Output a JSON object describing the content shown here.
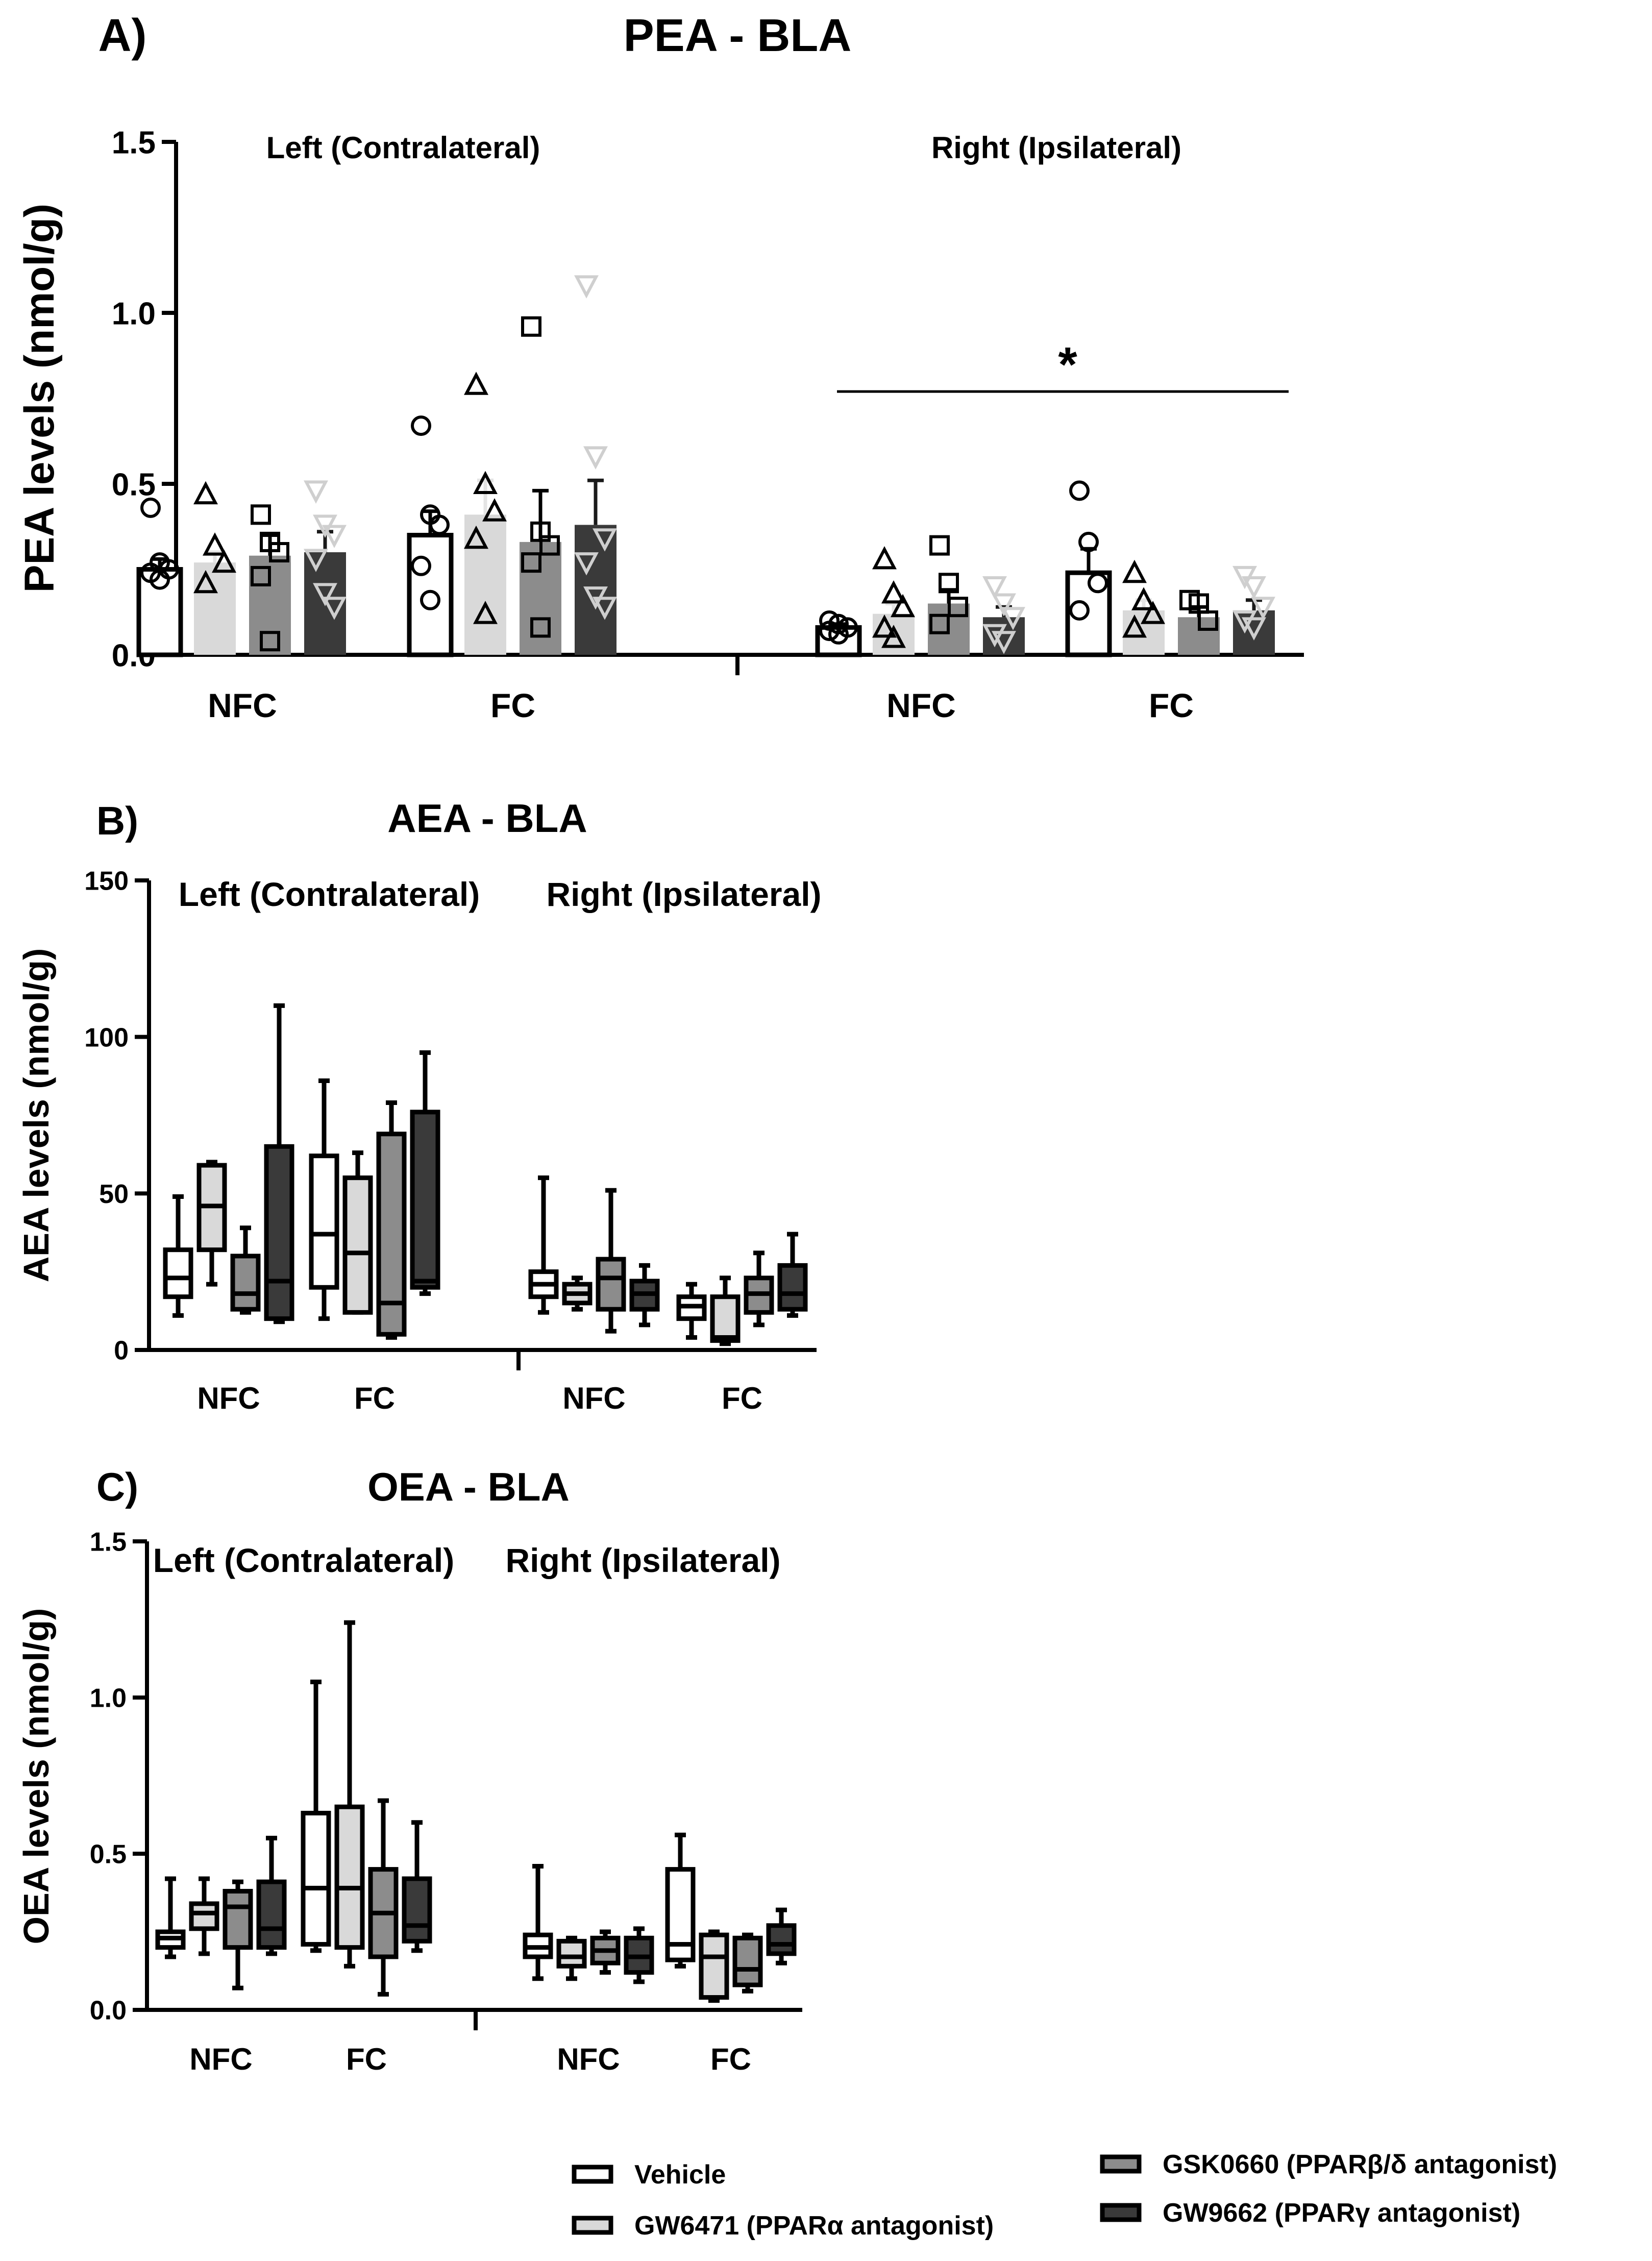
{
  "colors": {
    "vehicle": "#ffffff",
    "gw6471": "#d9d9d9",
    "gsk0660": "#8c8c8c",
    "gw9662": "#3a3a3a",
    "gw9662_marker": "#cfcfcf",
    "axis": "#000000"
  },
  "legend": {
    "items": [
      {
        "label": "Vehicle",
        "color": "#ffffff"
      },
      {
        "label": "GW6471 (PPARα antagonist)",
        "color": "#d9d9d9"
      },
      {
        "label": "GSK0660 (PPARβ/δ antagonist)",
        "color": "#8c8c8c"
      },
      {
        "label": "GW9662 (PPARγ antagonist)",
        "color": "#3a3a3a"
      }
    ]
  },
  "chart_data": [
    {
      "panel": "A)",
      "type": "bar",
      "title": "PEA - BLA",
      "ylabel": "PEA levels (nmol/g)",
      "ylim": [
        0,
        1.5
      ],
      "yticks": [
        "0.0",
        "0.5",
        "1.0",
        "1.5"
      ],
      "ytick_values": [
        0,
        0.5,
        1.0,
        1.5
      ],
      "sides": [
        "Left (Contralateral)",
        "Right (Ipsilateral)"
      ],
      "categories": [
        "NFC",
        "FC",
        "NFC",
        "FC"
      ],
      "series": [
        {
          "name": "Vehicle",
          "marker": "circle",
          "values": [
            0.25,
            0.35,
            0.08,
            0.24
          ],
          "sem": [
            0.03,
            0.07,
            0.01,
            0.07
          ],
          "points": [
            [
              0.43,
              0.27,
              0.25,
              0.24,
              0.22
            ],
            [
              0.67,
              0.41,
              0.38,
              0.26,
              0.16
            ],
            [
              0.1,
              0.09,
              0.08,
              0.07,
              0.06
            ],
            [
              0.48,
              0.33,
              0.21,
              0.13
            ]
          ]
        },
        {
          "name": "GW6471 (PPARα antagonist)",
          "marker": "triangle",
          "values": [
            0.27,
            0.41,
            0.12,
            0.13
          ],
          "sem": [
            0.03,
            0.1,
            0.03,
            0.03
          ],
          "points": [
            [
              0.47,
              0.32,
              0.27,
              0.21
            ],
            [
              0.79,
              0.5,
              0.42,
              0.34,
              0.12
            ],
            [
              0.28,
              0.18,
              0.14,
              0.08,
              0.05
            ],
            [
              0.24,
              0.16,
              0.12,
              0.08
            ]
          ]
        },
        {
          "name": "GSK0660 (PPARβ/δ antagonist)",
          "marker": "square",
          "values": [
            0.29,
            0.33,
            0.15,
            0.11
          ],
          "sem": [
            0.06,
            0.15,
            0.04,
            0.03
          ],
          "points": [
            [
              0.41,
              0.33,
              0.3,
              0.23,
              0.04
            ],
            [
              0.96,
              0.36,
              0.32,
              0.27,
              0.08
            ],
            [
              0.32,
              0.21,
              0.14,
              0.09
            ],
            [
              0.16,
              0.15,
              0.1
            ]
          ]
        },
        {
          "name": "GW9662 (PPARγ antagonist)",
          "marker": "inverted-triangle",
          "values": [
            0.3,
            0.38,
            0.11,
            0.13
          ],
          "sem": [
            0.06,
            0.13,
            0.03,
            0.03
          ],
          "points": [
            [
              0.48,
              0.38,
              0.35,
              0.28,
              0.18,
              0.14
            ],
            [
              1.08,
              0.58,
              0.34,
              0.27,
              0.17,
              0.14
            ],
            [
              0.2,
              0.15,
              0.11,
              0.06,
              0.04
            ],
            [
              0.23,
              0.2,
              0.14,
              0.1,
              0.08
            ]
          ]
        }
      ],
      "annotation": {
        "text": "*",
        "span": "Right (Ipsilateral)",
        "y": 0.77
      }
    },
    {
      "panel": "B)",
      "type": "box",
      "title": "AEA - BLA",
      "ylabel": "AEA levels (nmol/g)",
      "ylim": [
        0,
        150
      ],
      "yticks": [
        "0",
        "50",
        "100",
        "150"
      ],
      "ytick_values": [
        0,
        50,
        100,
        150
      ],
      "sides": [
        "Left (Contralateral)",
        "Right (Ipsilateral)"
      ],
      "categories": [
        "NFC",
        "FC",
        "NFC",
        "FC"
      ],
      "series": [
        {
          "name": "Vehicle",
          "boxes": [
            {
              "min": 11,
              "q1": 17,
              "median": 23,
              "q3": 32,
              "max": 49
            },
            {
              "min": 10,
              "q1": 20,
              "median": 37,
              "q3": 62,
              "max": 86
            },
            {
              "min": 12,
              "q1": 17,
              "median": 21,
              "q3": 25,
              "max": 55
            },
            {
              "min": 4,
              "q1": 10,
              "median": 14,
              "q3": 17,
              "max": 21
            }
          ]
        },
        {
          "name": "GW6471 (PPARα antagonist)",
          "boxes": [
            {
              "min": 21,
              "q1": 32,
              "median": 46,
              "q3": 59,
              "max": 60
            },
            {
              "min": 12,
              "q1": 12,
              "median": 31,
              "q3": 55,
              "max": 63
            },
            {
              "min": 13,
              "q1": 15,
              "median": 18,
              "q3": 21,
              "max": 23
            },
            {
              "min": 2,
              "q1": 3,
              "median": 4,
              "q3": 17,
              "max": 23
            }
          ]
        },
        {
          "name": "GSK0660 (PPARβ/δ antagonist)",
          "boxes": [
            {
              "min": 12,
              "q1": 13,
              "median": 18,
              "q3": 30,
              "max": 39
            },
            {
              "min": 4,
              "q1": 5,
              "median": 15,
              "q3": 69,
              "max": 79
            },
            {
              "min": 6,
              "q1": 13,
              "median": 23,
              "q3": 29,
              "max": 51
            },
            {
              "min": 8,
              "q1": 12,
              "median": 18,
              "q3": 23,
              "max": 31
            }
          ]
        },
        {
          "name": "GW9662 (PPARγ antagonist)",
          "boxes": [
            {
              "min": 9,
              "q1": 10,
              "median": 22,
              "q3": 65,
              "max": 110
            },
            {
              "min": 18,
              "q1": 20,
              "median": 22,
              "q3": 76,
              "max": 95
            },
            {
              "min": 8,
              "q1": 13,
              "median": 18,
              "q3": 22,
              "max": 27
            },
            {
              "min": 11,
              "q1": 13,
              "median": 18,
              "q3": 27,
              "max": 37
            }
          ]
        }
      ]
    },
    {
      "panel": "C)",
      "type": "box",
      "title": "OEA - BLA",
      "ylabel": "OEA levels (nmol/g)",
      "ylim": [
        0,
        1.5
      ],
      "yticks": [
        "0.0",
        "0.5",
        "1.0",
        "1.5"
      ],
      "ytick_values": [
        0,
        0.5,
        1.0,
        1.5
      ],
      "sides": [
        "Left (Contralateral)",
        "Right (Ipsilateral)"
      ],
      "categories": [
        "NFC",
        "FC",
        "NFC",
        "FC"
      ],
      "series": [
        {
          "name": "Vehicle",
          "boxes": [
            {
              "min": 0.17,
              "q1": 0.2,
              "median": 0.23,
              "q3": 0.25,
              "max": 0.42
            },
            {
              "min": 0.19,
              "q1": 0.21,
              "median": 0.39,
              "q3": 0.63,
              "max": 1.05
            },
            {
              "min": 0.1,
              "q1": 0.17,
              "median": 0.2,
              "q3": 0.24,
              "max": 0.46
            },
            {
              "min": 0.14,
              "q1": 0.16,
              "median": 0.21,
              "q3": 0.45,
              "max": 0.56
            }
          ]
        },
        {
          "name": "GW6471 (PPARα antagonist)",
          "boxes": [
            {
              "min": 0.18,
              "q1": 0.26,
              "median": 0.31,
              "q3": 0.34,
              "max": 0.42
            },
            {
              "min": 0.14,
              "q1": 0.2,
              "median": 0.39,
              "q3": 0.65,
              "max": 1.24
            },
            {
              "min": 0.1,
              "q1": 0.14,
              "median": 0.17,
              "q3": 0.22,
              "max": 0.23
            },
            {
              "min": 0.03,
              "q1": 0.04,
              "median": 0.17,
              "q3": 0.24,
              "max": 0.25
            }
          ]
        },
        {
          "name": "GSK0660 (PPARβ/δ antagonist)",
          "boxes": [
            {
              "min": 0.07,
              "q1": 0.2,
              "median": 0.33,
              "q3": 0.38,
              "max": 0.41
            },
            {
              "min": 0.05,
              "q1": 0.17,
              "median": 0.31,
              "q3": 0.45,
              "max": 0.67
            },
            {
              "min": 0.12,
              "q1": 0.15,
              "median": 0.19,
              "q3": 0.23,
              "max": 0.25
            },
            {
              "min": 0.06,
              "q1": 0.08,
              "median": 0.13,
              "q3": 0.23,
              "max": 0.24
            }
          ]
        },
        {
          "name": "GW9662 (PPARγ antagonist)",
          "boxes": [
            {
              "min": 0.18,
              "q1": 0.2,
              "median": 0.26,
              "q3": 0.41,
              "max": 0.55
            },
            {
              "min": 0.19,
              "q1": 0.22,
              "median": 0.27,
              "q3": 0.42,
              "max": 0.6
            },
            {
              "min": 0.09,
              "q1": 0.12,
              "median": 0.17,
              "q3": 0.23,
              "max": 0.26
            },
            {
              "min": 0.15,
              "q1": 0.18,
              "median": 0.21,
              "q3": 0.27,
              "max": 0.32
            }
          ]
        }
      ]
    }
  ]
}
